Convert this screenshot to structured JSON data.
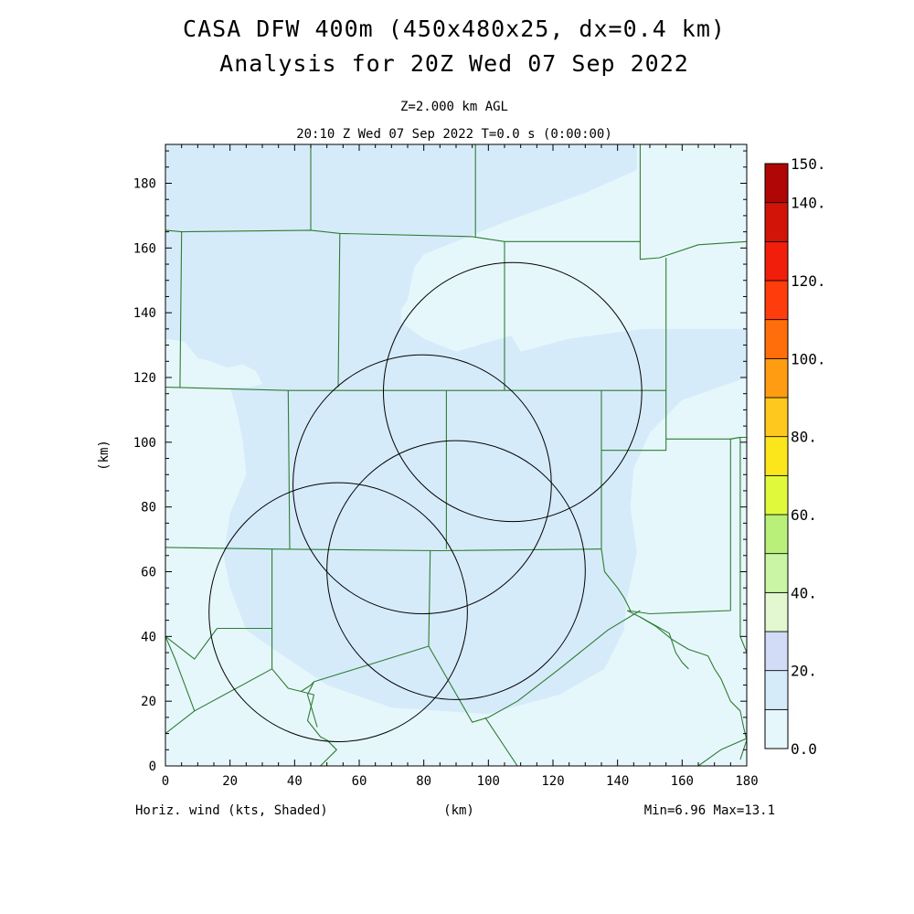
{
  "header": {
    "title_line1": "CASA DFW 400m (450x480x25, dx=0.4 km)",
    "title_line2": "Analysis for 20Z Wed 07 Sep 2022",
    "level": "Z=2.000 km AGL",
    "time": "20:10 Z Wed 07 Sep 2022    T=0.0 s (0:00:00)"
  },
  "axes": {
    "xlabel": "(km)",
    "ylabel": "(km)",
    "xlim": [
      0,
      180
    ],
    "ylim": [
      0,
      192
    ],
    "xticks": [
      0,
      20,
      40,
      60,
      80,
      100,
      120,
      140,
      160,
      180
    ],
    "yticks": [
      0,
      20,
      40,
      60,
      80,
      100,
      120,
      140,
      160,
      180
    ]
  },
  "colorbar": {
    "labels": [
      {
        "text": "0.0",
        "value": 0
      },
      {
        "text": "20.",
        "value": 20
      },
      {
        "text": "40.",
        "value": 40
      },
      {
        "text": "60.",
        "value": 60
      },
      {
        "text": "80.",
        "value": 80
      },
      {
        "text": "100.",
        "value": 100
      },
      {
        "text": "120.",
        "value": 120
      },
      {
        "text": "140.",
        "value": 140
      },
      {
        "text": "150.",
        "value": 150
      }
    ],
    "bins": [
      {
        "lo": 0,
        "hi": 10,
        "color": "#e6f7fc"
      },
      {
        "lo": 10,
        "hi": 20,
        "color": "#d6ebfa"
      },
      {
        "lo": 20,
        "hi": 30,
        "color": "#d3dcf6"
      },
      {
        "lo": 30,
        "hi": 40,
        "color": "#e3f7d0"
      },
      {
        "lo": 40,
        "hi": 50,
        "color": "#c9f5a5"
      },
      {
        "lo": 50,
        "hi": 60,
        "color": "#b9f07a"
      },
      {
        "lo": 60,
        "hi": 70,
        "color": "#e0fa3b"
      },
      {
        "lo": 70,
        "hi": 80,
        "color": "#fbe61c"
      },
      {
        "lo": 80,
        "hi": 90,
        "color": "#ffc81e"
      },
      {
        "lo": 90,
        "hi": 100,
        "color": "#ff9c12"
      },
      {
        "lo": 100,
        "hi": 110,
        "color": "#ff6e0a"
      },
      {
        "lo": 110,
        "hi": 120,
        "color": "#ff3c0c"
      },
      {
        "lo": 120,
        "hi": 130,
        "color": "#f01e0a"
      },
      {
        "lo": 130,
        "hi": 140,
        "color": "#d21408"
      },
      {
        "lo": 140,
        "hi": 150,
        "color": "#b00606"
      }
    ]
  },
  "footer": {
    "left": "Horiz. wind (kts, Shaded)",
    "center": "(km)",
    "right": "Min=6.96 Max=13.1"
  },
  "map": {
    "background_color": "#e6f7fc",
    "shading_color": "#d6ebfa",
    "border_color": "#2e7d32",
    "range_ring_color": "#000000",
    "range_rings": [
      {
        "cx": 53.5,
        "cy": 47.5,
        "r": 40
      },
      {
        "cx": 79.5,
        "cy": 87,
        "r": 40
      },
      {
        "cx": 107.5,
        "cy": 115.5,
        "r": 40
      },
      {
        "cx": 90,
        "cy": 60.5,
        "r": 40
      }
    ],
    "shaded_region": [
      [
        0,
        192
      ],
      [
        150,
        192
      ],
      [
        148,
        185
      ],
      [
        130,
        177
      ],
      [
        105,
        168
      ],
      [
        80,
        158
      ],
      [
        77,
        154
      ],
      [
        75,
        144
      ],
      [
        73,
        141
      ],
      [
        73,
        137
      ],
      [
        80,
        132
      ],
      [
        90,
        128
      ],
      [
        107,
        133
      ],
      [
        110,
        128
      ],
      [
        125,
        132
      ],
      [
        148,
        135
      ],
      [
        180,
        135
      ],
      [
        180,
        120
      ],
      [
        160,
        113
      ],
      [
        150,
        103
      ],
      [
        145,
        92
      ],
      [
        144,
        80
      ],
      [
        146,
        66
      ],
      [
        143,
        52
      ],
      [
        142,
        42
      ],
      [
        136,
        30
      ],
      [
        122,
        22
      ],
      [
        100,
        16
      ],
      [
        70,
        18
      ],
      [
        50,
        25
      ],
      [
        35,
        35
      ],
      [
        25,
        42
      ],
      [
        20,
        55
      ],
      [
        18,
        65
      ],
      [
        20,
        78
      ],
      [
        25,
        90
      ],
      [
        24,
        100
      ],
      [
        22,
        110
      ],
      [
        20,
        117
      ],
      [
        0,
        117
      ]
    ],
    "light_patches": [
      [
        [
          0,
          132
        ],
        [
          6,
          131
        ],
        [
          10,
          126
        ],
        [
          14,
          125
        ],
        [
          19,
          123
        ],
        [
          24,
          124
        ],
        [
          28,
          122
        ],
        [
          30,
          118
        ],
        [
          26,
          117
        ],
        [
          18,
          117
        ],
        [
          5,
          117
        ],
        [
          0,
          117
        ]
      ],
      [
        [
          146,
          192
        ],
        [
          180,
          192
        ],
        [
          180,
          158
        ],
        [
          160,
          158
        ],
        [
          148,
          160
        ],
        [
          146,
          162
        ]
      ]
    ],
    "county_lines": [
      [
        [
          0,
          165.5
        ],
        [
          5,
          165
        ],
        [
          45,
          165.5
        ],
        [
          54,
          164.5
        ],
        [
          95,
          163.5
        ],
        [
          105,
          162
        ],
        [
          147,
          162
        ],
        [
          147,
          156.5
        ],
        [
          153,
          157
        ],
        [
          165,
          161
        ],
        [
          180,
          162
        ]
      ],
      [
        [
          45,
          192
        ],
        [
          45,
          165.5
        ]
      ],
      [
        [
          96,
          192
        ],
        [
          96,
          163.5
        ]
      ],
      [
        [
          147,
          192
        ],
        [
          147,
          162
        ]
      ],
      [
        [
          5,
          165
        ],
        [
          4.5,
          117
        ]
      ],
      [
        [
          54,
          164.5
        ],
        [
          53.5,
          117
        ]
      ],
      [
        [
          105,
          162
        ],
        [
          105,
          116
        ]
      ],
      [
        [
          155,
          157
        ],
        [
          155,
          116
        ]
      ],
      [
        [
          0,
          117
        ],
        [
          38,
          116
        ],
        [
          80,
          116
        ],
        [
          105,
          116
        ],
        [
          135,
          116
        ],
        [
          155,
          116
        ]
      ],
      [
        [
          155,
          116
        ],
        [
          155,
          101
        ],
        [
          175,
          101
        ],
        [
          178,
          101.5
        ],
        [
          180,
          101.5
        ]
      ],
      [
        [
          38,
          116
        ],
        [
          38.5,
          67
        ]
      ],
      [
        [
          87,
          116
        ],
        [
          87,
          67
        ]
      ],
      [
        [
          135,
          116
        ],
        [
          135,
          67
        ]
      ],
      [
        [
          135,
          97.5
        ],
        [
          155,
          97.5
        ],
        [
          155,
          101
        ]
      ],
      [
        [
          0,
          67.5
        ],
        [
          33,
          67
        ],
        [
          85,
          66.5
        ],
        [
          135,
          67
        ]
      ],
      [
        [
          33,
          67
        ],
        [
          33,
          30
        ]
      ],
      [
        [
          82,
          66.5
        ],
        [
          81.5,
          37
        ]
      ],
      [
        [
          178,
          101.5
        ],
        [
          175,
          101
        ],
        [
          175,
          48
        ],
        [
          150,
          47
        ],
        [
          143,
          48
        ]
      ],
      [
        [
          178,
          101.5
        ],
        [
          178,
          40
        ],
        [
          180,
          35
        ]
      ],
      [
        [
          135,
          67
        ],
        [
          136,
          60
        ],
        [
          140,
          55
        ],
        [
          142,
          52
        ],
        [
          143,
          50
        ],
        [
          144,
          48
        ]
      ],
      [
        [
          16,
          42.5
        ],
        [
          33,
          42.5
        ]
      ],
      [
        [
          0,
          40
        ],
        [
          9,
          33
        ],
        [
          16,
          42.5
        ]
      ],
      [
        [
          0,
          40
        ],
        [
          3,
          33
        ],
        [
          9,
          17
        ]
      ],
      [
        [
          0,
          10
        ],
        [
          9,
          17
        ],
        [
          33,
          30
        ],
        [
          38,
          24
        ],
        [
          42,
          23
        ],
        [
          45,
          25
        ],
        [
          46,
          26
        ]
      ],
      [
        [
          46,
          26
        ],
        [
          81.5,
          37
        ]
      ],
      [
        [
          81.5,
          37
        ],
        [
          95,
          13.5
        ],
        [
          100,
          15
        ],
        [
          109,
          20
        ],
        [
          122,
          30
        ],
        [
          137,
          42
        ],
        [
          147,
          48
        ]
      ],
      [
        [
          143,
          48
        ],
        [
          147,
          46
        ],
        [
          152,
          43
        ],
        [
          157,
          39
        ],
        [
          162,
          36
        ],
        [
          165,
          35
        ],
        [
          168,
          34
        ],
        [
          170,
          30
        ],
        [
          172,
          27
        ],
        [
          175,
          20
        ],
        [
          178,
          17
        ],
        [
          179,
          12
        ],
        [
          180,
          8
        ],
        [
          178,
          2
        ]
      ],
      [
        [
          147,
          46
        ],
        [
          156,
          41
        ],
        [
          158,
          35
        ],
        [
          160,
          32
        ],
        [
          162,
          30
        ]
      ],
      [
        [
          99,
          15
        ],
        [
          109,
          0
        ]
      ],
      [
        [
          165,
          0
        ],
        [
          172,
          5
        ],
        [
          180,
          8.5
        ]
      ],
      [
        [
          42,
          23
        ],
        [
          46,
          22
        ],
        [
          44,
          14
        ],
        [
          48,
          9
        ],
        [
          50,
          8
        ],
        [
          53,
          5
        ],
        [
          48,
          0
        ]
      ],
      [
        [
          46,
          26
        ],
        [
          44,
          22
        ],
        [
          47,
          12
        ]
      ]
    ]
  }
}
